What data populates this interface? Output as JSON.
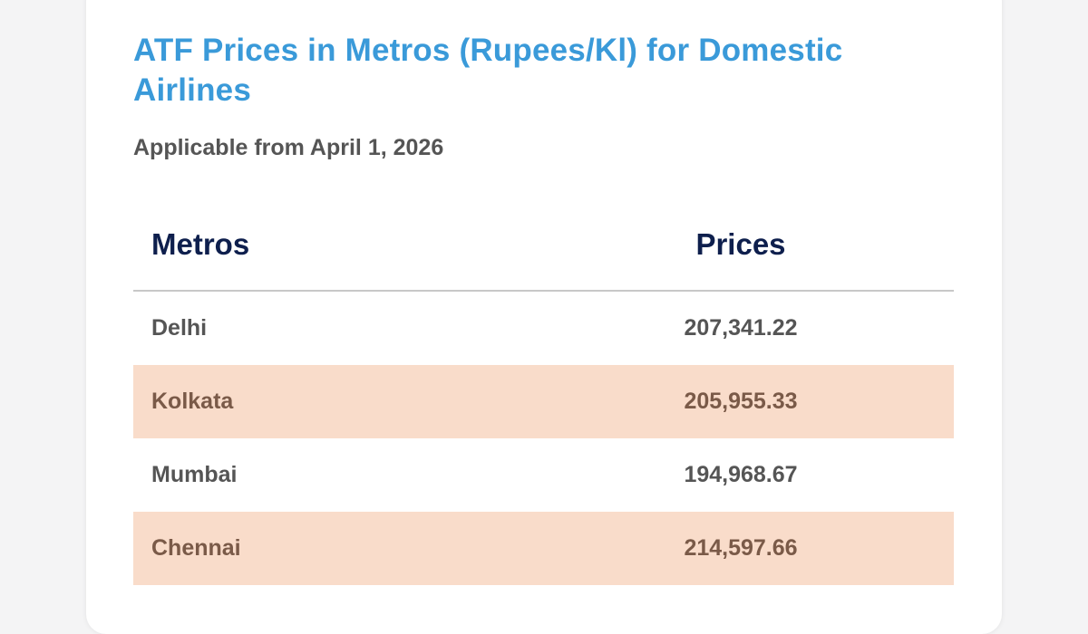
{
  "title": "ATF Prices in Metros (Rupees/Kl) for Domestic Airlines",
  "subtitle": "Applicable from April 1, 2026",
  "table": {
    "headers": {
      "metros": "Metros",
      "prices": "Prices"
    },
    "rows": [
      {
        "metro": "Delhi",
        "price": "207,341.22"
      },
      {
        "metro": "Kolkata",
        "price": "205,955.33"
      },
      {
        "metro": "Mumbai",
        "price": "194,968.67"
      },
      {
        "metro": "Chennai",
        "price": "214,597.66"
      }
    ]
  },
  "colors": {
    "title": "#3a9ad9",
    "header_text": "#0e1f4d",
    "row_shade": "#f9dcca",
    "body_text": "#555555"
  }
}
